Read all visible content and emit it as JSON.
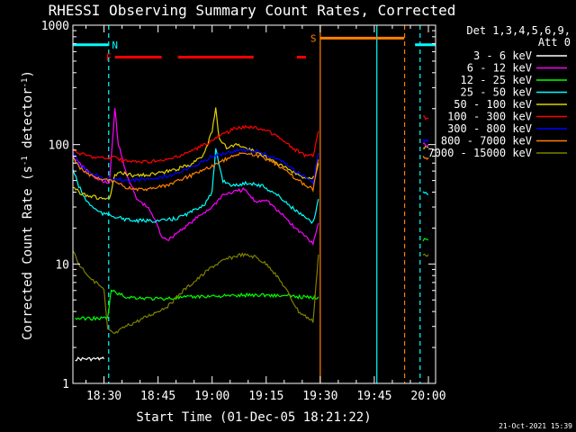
{
  "chart_data": {
    "type": "line",
    "title": "RHESSI Observing Summary Count Rates, Corrected",
    "xlabel": "Start Time (01-Dec-05 18:21:22)",
    "ylabel_main": "Corrected Count Rate (s",
    "ylabel_sup1": "-1",
    "ylabel_mid": " detector",
    "ylabel_sup2": "-1",
    "ylabel_end": ")",
    "x_unit": "minutes after 18:00 UT",
    "xlim": [
      21.37,
      122
    ],
    "ylim": [
      1,
      1000
    ],
    "y_scale": "log",
    "x_ticks": [
      {
        "value": 30,
        "label": "18:30"
      },
      {
        "value": 45,
        "label": "18:45"
      },
      {
        "value": 60,
        "label": "19:00"
      },
      {
        "value": 75,
        "label": "19:15"
      },
      {
        "value": 90,
        "label": "19:30"
      },
      {
        "value": 105,
        "label": "19:45"
      },
      {
        "value": 120,
        "label": "20:00"
      }
    ],
    "y_ticks": [
      {
        "value": 1,
        "label": "1"
      },
      {
        "value": 10,
        "label": "10"
      },
      {
        "value": 100,
        "label": "100"
      },
      {
        "value": 1000,
        "label": "1000"
      }
    ],
    "legend_title": [
      "Det 1,3,4,5,6,9,",
      "Att 0"
    ],
    "legend_position": "right",
    "footer_date": "21-Oct-2021 15:39",
    "series": [
      {
        "name": "3 - 6 keV",
        "color": "#ffffff",
        "x": [
          22,
          24,
          26,
          28,
          29,
          30
        ],
        "y": [
          1.6,
          1.6,
          1.6,
          1.6,
          1.6,
          1.6
        ]
      },
      {
        "name": "6 - 12 keV",
        "color": "#ff00ff",
        "x": [
          21.4,
          23,
          26,
          28,
          30,
          31.5,
          33,
          34,
          36,
          39,
          42,
          44,
          46,
          48,
          50,
          52,
          54,
          57,
          60,
          63,
          66,
          69,
          72,
          75,
          78,
          80,
          83,
          86,
          88,
          89.5
        ],
        "y": [
          80,
          70,
          58,
          52,
          48,
          48,
          200,
          100,
          60,
          35,
          30,
          24,
          17,
          16,
          18,
          20,
          22,
          26,
          30,
          38,
          40,
          42,
          33,
          35,
          28,
          25,
          20,
          17,
          15,
          22
        ]
      },
      {
        "name": "12 - 25 keV",
        "color": "#00ff00",
        "x": [
          22,
          24,
          26,
          28,
          30,
          31,
          32,
          36,
          40,
          45,
          50,
          55,
          60,
          65,
          70,
          75,
          80,
          85,
          88,
          89.5
        ],
        "y": [
          3.5,
          3.5,
          3.5,
          3.5,
          3.5,
          3.5,
          6.0,
          5.3,
          5.2,
          5.1,
          5.2,
          5.3,
          5.4,
          5.4,
          5.5,
          5.5,
          5.4,
          5.3,
          5.2,
          5.3
        ]
      },
      {
        "name": "25 - 50 keV",
        "color": "#00ffff",
        "x": [
          21.4,
          23,
          25,
          28,
          30,
          31.5,
          33,
          35,
          38,
          42,
          46,
          50,
          54,
          58,
          60,
          61,
          63,
          66,
          70,
          74,
          78,
          82,
          86,
          88,
          89.5
        ],
        "y": [
          62,
          45,
          34,
          28,
          26,
          26,
          25,
          24,
          23,
          23,
          23,
          24,
          27,
          32,
          40,
          90,
          50,
          45,
          48,
          45,
          38,
          30,
          24,
          22,
          35
        ]
      },
      {
        "name": "50 - 100 keV",
        "color": "#e0d000",
        "x": [
          21.4,
          23,
          25,
          28,
          30,
          31.5,
          33,
          35,
          38,
          42,
          46,
          50,
          54,
          58,
          60,
          61,
          62,
          64,
          67,
          70,
          73,
          76,
          80,
          84,
          87,
          88.5,
          89.5
        ],
        "y": [
          45,
          40,
          38,
          36,
          35,
          35,
          55,
          58,
          55,
          56,
          58,
          62,
          68,
          85,
          130,
          200,
          110,
          95,
          100,
          92,
          85,
          75,
          65,
          55,
          52,
          55,
          70
        ]
      },
      {
        "name": "100 - 300 keV",
        "color": "#ff0000",
        "x": [
          21.4,
          23,
          26,
          28,
          30,
          31.5,
          33,
          35,
          38,
          42,
          46,
          50,
          54,
          58,
          62,
          66,
          70,
          74,
          78,
          82,
          86,
          88,
          89.5
        ],
        "y": [
          90,
          85,
          80,
          78,
          77,
          77,
          80,
          73,
          72,
          72,
          73,
          78,
          88,
          100,
          118,
          135,
          142,
          135,
          118,
          95,
          80,
          80,
          130
        ]
      },
      {
        "name": "300 - 800 keV",
        "color": "#0000ff",
        "x": [
          21.4,
          23,
          26,
          28,
          30,
          31.5,
          33,
          36,
          40,
          44,
          48,
          52,
          56,
          60,
          64,
          68,
          72,
          76,
          80,
          84,
          88,
          89.5
        ],
        "y": [
          85,
          70,
          58,
          55,
          52,
          52,
          52,
          50,
          51,
          52,
          55,
          60,
          68,
          80,
          85,
          90,
          88,
          80,
          70,
          58,
          48,
          85
        ]
      },
      {
        "name": "800 - 7000 keV",
        "color": "#ff8000",
        "x": [
          21.4,
          23,
          26,
          28,
          30,
          31.5,
          33,
          36,
          40,
          44,
          48,
          52,
          56,
          60,
          64,
          68,
          72,
          76,
          80,
          84,
          88,
          89.5
        ],
        "y": [
          78,
          65,
          56,
          52,
          50,
          50,
          48,
          44,
          42,
          43,
          46,
          52,
          58,
          66,
          76,
          85,
          82,
          74,
          62,
          50,
          42,
          75
        ]
      },
      {
        "name": "7000 - 15000 keV",
        "color": "#808000",
        "x": [
          21.4,
          23,
          25,
          27,
          29,
          30,
          31,
          33,
          36,
          40,
          44,
          48,
          52,
          56,
          60,
          64,
          68,
          72,
          76,
          80,
          84,
          88,
          89.5
        ],
        "y": [
          13,
          10,
          8.5,
          7.2,
          6.5,
          6.0,
          2.8,
          2.6,
          3.0,
          3.4,
          3.9,
          4.5,
          6.0,
          7.5,
          9.5,
          11,
          12,
          11.5,
          9.5,
          6.5,
          4.0,
          3.3,
          12
        ]
      }
    ],
    "after_gap": [
      {
        "color": "#ff0000",
        "x": [
          118.5,
          120
        ],
        "y": [
          170,
          165
        ]
      },
      {
        "color": "#0000ff",
        "x": [
          118.5,
          120
        ],
        "y": [
          110,
          110
        ]
      },
      {
        "color": "#e0d000",
        "x": [
          118.5,
          120
        ],
        "y": [
          95,
          95
        ]
      },
      {
        "color": "#ff8000",
        "x": [
          118.5,
          120
        ],
        "y": [
          78,
          78
        ]
      },
      {
        "color": "#00ffff",
        "x": [
          118.5,
          120
        ],
        "y": [
          40,
          38
        ]
      },
      {
        "color": "#808000",
        "x": [
          118.5,
          120
        ],
        "y": [
          12,
          12
        ]
      },
      {
        "color": "#00ff00",
        "x": [
          118.5,
          120
        ],
        "y": [
          16,
          16
        ]
      },
      {
        "color": "#ff00ff",
        "x": [
          118.5,
          120
        ],
        "y": [
          100,
          100
        ]
      }
    ],
    "flags": [
      {
        "label": "N",
        "color": "#00ffff",
        "y": 685,
        "segments": [
          [
            21.4,
            31.2
          ],
          [
            116.3,
            122
          ]
        ]
      },
      {
        "label": "F",
        "color": "#ff0000",
        "y": 540,
        "segments": [
          [
            33,
            46
          ],
          [
            50.5,
            71.5
          ],
          [
            83.5,
            86
          ]
        ]
      },
      {
        "label": "S",
        "color": "#ff8000",
        "y": 780,
        "segments": [
          [
            90,
            113.3
          ]
        ]
      }
    ],
    "vlines": [
      {
        "x": 31.3,
        "color": "#00ffff",
        "style": "dashed"
      },
      {
        "x": 90.0,
        "color": "#ff8000",
        "style": "solid"
      },
      {
        "x": 105.7,
        "color": "#00ffff",
        "style": "solid"
      },
      {
        "x": 113.4,
        "color": "#ff8000",
        "style": "dashed"
      },
      {
        "x": 117.7,
        "color": "#00ffff",
        "style": "dashed"
      }
    ]
  }
}
